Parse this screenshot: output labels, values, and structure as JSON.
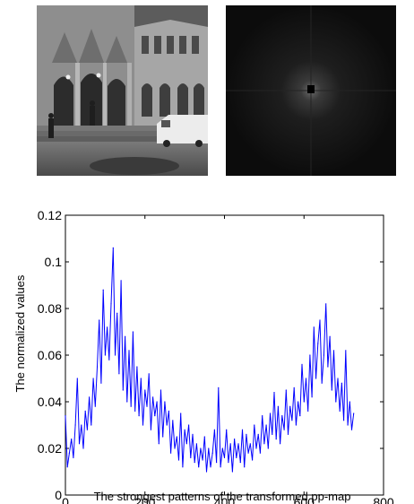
{
  "figure": {
    "photo_panel_name": "building photograph",
    "spectrum_panel_name": "fourier magnitude spectrum"
  },
  "chart_data": {
    "type": "line",
    "title": "",
    "xlabel": "The strongest patterns of the transformed pp-map",
    "ylabel": "The normalized values",
    "xlim": [
      0,
      800
    ],
    "ylim": [
      0,
      0.12
    ],
    "xticks": [
      0,
      200,
      400,
      600,
      800
    ],
    "xtick_labels": [
      "0",
      "200",
      "400",
      "600",
      "800"
    ],
    "yticks": [
      0,
      0.02,
      0.04,
      0.06,
      0.08,
      0.1,
      0.12
    ],
    "ytick_labels": [
      "0",
      "0.02",
      "0.04",
      "0.06",
      "0.08",
      "0.1",
      "0.12"
    ],
    "grid": false,
    "legend": "none",
    "line_color": "#0000ff",
    "series": [
      {
        "x": [
          0,
          5,
          10,
          15,
          20,
          25,
          30,
          35,
          40,
          45,
          50,
          55,
          60,
          65,
          70,
          75,
          80,
          85,
          90,
          95,
          100,
          105,
          110,
          115,
          120,
          125,
          130,
          135,
          140,
          145,
          150,
          155,
          160,
          165,
          170,
          175,
          180,
          185,
          190,
          195,
          200,
          205,
          210,
          215,
          220,
          225,
          230,
          235,
          240,
          245,
          250,
          255,
          260,
          265,
          270,
          275,
          280,
          285,
          290,
          295,
          300,
          305,
          310,
          315,
          320,
          325,
          330,
          335,
          340,
          345,
          350,
          355,
          360,
          365,
          370,
          375,
          380,
          385,
          390,
          395,
          400,
          405,
          410,
          415,
          420,
          425,
          430,
          435,
          440,
          445,
          450,
          455,
          460,
          465,
          470,
          475,
          480,
          485,
          490,
          495,
          500,
          505,
          510,
          515,
          520,
          525,
          530,
          535,
          540,
          545,
          550,
          555,
          560,
          565,
          570,
          575,
          580,
          585,
          590,
          595,
          600,
          605,
          610,
          615,
          620,
          625,
          630,
          635,
          640,
          645,
          650,
          655,
          660,
          665,
          670,
          675,
          680,
          685,
          690,
          695,
          700,
          705,
          710,
          715,
          720,
          725
        ],
        "values": [
          0.034,
          0.012,
          0.018,
          0.024,
          0.016,
          0.03,
          0.05,
          0.022,
          0.03,
          0.02,
          0.036,
          0.028,
          0.042,
          0.03,
          0.05,
          0.038,
          0.055,
          0.075,
          0.048,
          0.088,
          0.06,
          0.072,
          0.058,
          0.082,
          0.106,
          0.06,
          0.078,
          0.052,
          0.092,
          0.045,
          0.068,
          0.04,
          0.062,
          0.038,
          0.07,
          0.036,
          0.055,
          0.034,
          0.05,
          0.03,
          0.045,
          0.038,
          0.052,
          0.028,
          0.042,
          0.034,
          0.04,
          0.022,
          0.045,
          0.025,
          0.04,
          0.03,
          0.036,
          0.018,
          0.032,
          0.02,
          0.025,
          0.015,
          0.035,
          0.012,
          0.028,
          0.022,
          0.03,
          0.016,
          0.026,
          0.014,
          0.022,
          0.012,
          0.02,
          0.015,
          0.025,
          0.01,
          0.02,
          0.012,
          0.018,
          0.028,
          0.014,
          0.046,
          0.012,
          0.02,
          0.016,
          0.028,
          0.014,
          0.022,
          0.01,
          0.024,
          0.016,
          0.022,
          0.014,
          0.028,
          0.012,
          0.026,
          0.018,
          0.022,
          0.015,
          0.03,
          0.02,
          0.026,
          0.018,
          0.034,
          0.022,
          0.03,
          0.02,
          0.035,
          0.026,
          0.044,
          0.024,
          0.038,
          0.022,
          0.034,
          0.028,
          0.045,
          0.026,
          0.038,
          0.032,
          0.046,
          0.03,
          0.04,
          0.034,
          0.056,
          0.04,
          0.05,
          0.036,
          0.06,
          0.042,
          0.072,
          0.05,
          0.065,
          0.075,
          0.048,
          0.06,
          0.082,
          0.055,
          0.068,
          0.045,
          0.062,
          0.04,
          0.05,
          0.036,
          0.048,
          0.032,
          0.062,
          0.03,
          0.04,
          0.028,
          0.035
        ]
      }
    ]
  }
}
